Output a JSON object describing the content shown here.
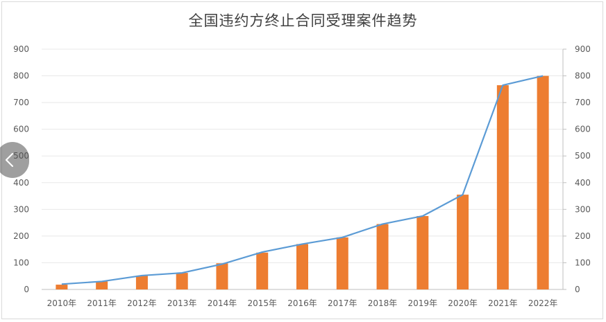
{
  "colors": {
    "bar": "#ed7d31",
    "line": "#5b9bd5",
    "grid": "#e8e8e8",
    "axis_text": "#595959",
    "title": "#404040"
  },
  "nav": {
    "prev_icon": "chevron-left-icon"
  },
  "chart_data": {
    "type": "bar",
    "title": "全国违约方终止合同受理案件趋势",
    "categories": [
      "2010年",
      "2011年",
      "2012年",
      "2013年",
      "2014年",
      "2015年",
      "2016年",
      "2017年",
      "2018年",
      "2019年",
      "2020年",
      "2021年",
      "2022年"
    ],
    "series": [
      {
        "type": "bar",
        "axis": "left",
        "values": [
          18,
          30,
          52,
          62,
          98,
          138,
          170,
          195,
          245,
          275,
          355,
          765,
          800
        ]
      },
      {
        "type": "line",
        "axis": "right",
        "values": [
          20,
          30,
          52,
          62,
          95,
          140,
          170,
          195,
          245,
          275,
          355,
          765,
          800
        ]
      }
    ],
    "y_left": {
      "min": 0,
      "max": 900,
      "ticks": [
        0,
        100,
        200,
        300,
        400,
        500,
        600,
        700,
        800,
        900
      ]
    },
    "y_right": {
      "min": 0,
      "max": 900,
      "ticks": [
        0,
        100,
        200,
        300,
        400,
        500,
        600,
        700,
        800,
        900
      ]
    },
    "grid": true,
    "legend": "none"
  }
}
